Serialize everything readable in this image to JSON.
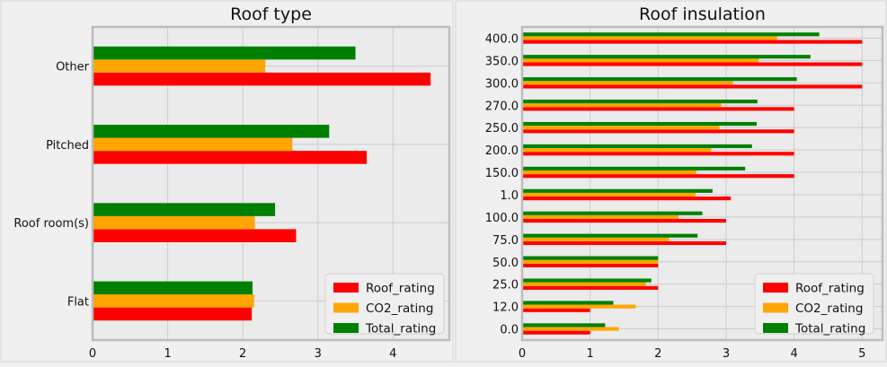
{
  "colors": {
    "Roof_rating": "#ff0000",
    "CO2_rating": "#ffa500",
    "Total_rating": "#008000",
    "axes_bg": "#ebebeb",
    "fig_bg": "#f0f0f0",
    "spine": "#bcbcbc",
    "grid": "#cbcbcb"
  },
  "chart_data": [
    {
      "type": "bar",
      "orientation": "horizontal",
      "title": "Roof type",
      "categories": [
        "Flat",
        "Roof room(s)",
        "Pitched",
        "Other"
      ],
      "series": [
        {
          "name": "Roof_rating",
          "values": [
            2.12,
            2.71,
            3.65,
            4.5
          ]
        },
        {
          "name": "CO2_rating",
          "values": [
            2.15,
            2.16,
            2.66,
            2.3
          ]
        },
        {
          "name": "Total_rating",
          "values": [
            2.13,
            2.43,
            3.15,
            3.5
          ]
        }
      ],
      "xlim": [
        0,
        4.75
      ],
      "xticks": [
        "0",
        "1",
        "2",
        "3",
        "4"
      ],
      "grid": true,
      "legend": "lower-right"
    },
    {
      "type": "bar",
      "orientation": "horizontal",
      "title": "Roof insulation",
      "categories": [
        "0.0",
        "12.0",
        "25.0",
        "50.0",
        "75.0",
        "100.0",
        "1.0",
        "150.0",
        "200.0",
        "250.0",
        "270.0",
        "300.0",
        "350.0",
        "400.0"
      ],
      "series": [
        {
          "name": "Roof_rating",
          "values": [
            1.0,
            1.0,
            2.0,
            2.0,
            3.0,
            3.0,
            3.07,
            4.0,
            4.0,
            4.0,
            4.0,
            5.0,
            5.0,
            5.0
          ]
        },
        {
          "name": "CO2_rating",
          "values": [
            1.42,
            1.67,
            1.82,
            2.0,
            2.16,
            2.3,
            2.55,
            2.56,
            2.78,
            2.9,
            2.93,
            3.1,
            3.48,
            3.75
          ]
        },
        {
          "name": "Total_rating",
          "values": [
            1.22,
            1.34,
            1.9,
            2.0,
            2.58,
            2.65,
            2.8,
            3.28,
            3.38,
            3.45,
            3.46,
            4.04,
            4.24,
            4.37
          ]
        }
      ],
      "xlim": [
        0,
        5.3
      ],
      "xticks": [
        "0",
        "1",
        "2",
        "3",
        "4",
        "5"
      ],
      "grid": true,
      "legend": "lower-right"
    }
  ]
}
